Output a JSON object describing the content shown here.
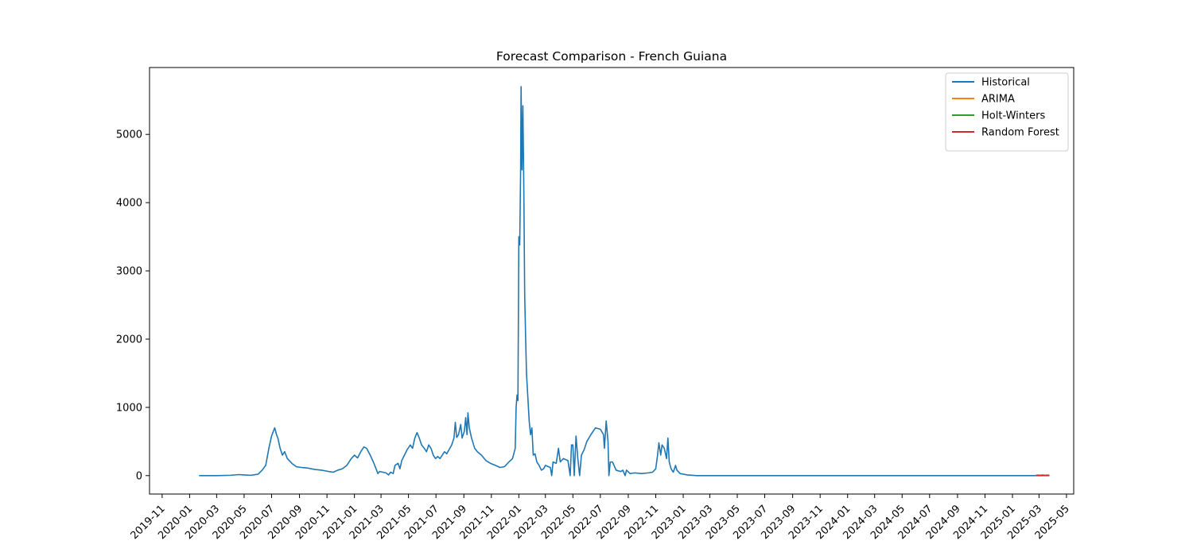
{
  "chart_data": {
    "type": "line",
    "title": "Forecast Comparison - French Guiana",
    "xlabel": "",
    "ylabel": "",
    "grid": false,
    "legend_position": "top-right",
    "xlim": [
      "2019-10-04",
      "2025-05-17"
    ],
    "ylim": [
      -270,
      5980
    ],
    "x_ticks": [
      "2019-11",
      "2020-01",
      "2020-03",
      "2020-05",
      "2020-07",
      "2020-09",
      "2020-11",
      "2021-01",
      "2021-03",
      "2021-05",
      "2021-07",
      "2021-09",
      "2021-11",
      "2022-01",
      "2022-03",
      "2022-05",
      "2022-07",
      "2022-09",
      "2022-11",
      "2023-01",
      "2023-03",
      "2023-05",
      "2023-07",
      "2023-09",
      "2023-11",
      "2024-01",
      "2024-03",
      "2024-05",
      "2024-07",
      "2024-09",
      "2024-11",
      "2025-01",
      "2025-03",
      "2025-05"
    ],
    "y_ticks": [
      0,
      1000,
      2000,
      3000,
      4000,
      5000
    ],
    "series": [
      {
        "name": "Historical",
        "color": "#1f77b4",
        "points": [
          [
            "2020-01-22",
            0
          ],
          [
            "2020-03-01",
            0
          ],
          [
            "2020-04-01",
            5
          ],
          [
            "2020-04-20",
            15
          ],
          [
            "2020-05-01",
            10
          ],
          [
            "2020-05-15",
            5
          ],
          [
            "2020-06-01",
            20
          ],
          [
            "2020-06-10",
            80
          ],
          [
            "2020-06-18",
            150
          ],
          [
            "2020-06-25",
            400
          ],
          [
            "2020-07-01",
            580
          ],
          [
            "2020-07-05",
            650
          ],
          [
            "2020-07-08",
            700
          ],
          [
            "2020-07-12",
            600
          ],
          [
            "2020-07-15",
            550
          ],
          [
            "2020-07-20",
            400
          ],
          [
            "2020-07-25",
            300
          ],
          [
            "2020-07-30",
            350
          ],
          [
            "2020-08-05",
            250
          ],
          [
            "2020-08-15",
            180
          ],
          [
            "2020-08-25",
            130
          ],
          [
            "2020-09-05",
            120
          ],
          [
            "2020-09-20",
            110
          ],
          [
            "2020-10-05",
            90
          ],
          [
            "2020-10-20",
            80
          ],
          [
            "2020-11-05",
            60
          ],
          [
            "2020-11-15",
            50
          ],
          [
            "2020-11-25",
            80
          ],
          [
            "2020-12-05",
            100
          ],
          [
            "2020-12-15",
            150
          ],
          [
            "2020-12-25",
            250
          ],
          [
            "2021-01-01",
            300
          ],
          [
            "2021-01-08",
            260
          ],
          [
            "2021-01-15",
            350
          ],
          [
            "2021-01-22",
            420
          ],
          [
            "2021-01-28",
            400
          ],
          [
            "2021-02-05",
            300
          ],
          [
            "2021-02-12",
            200
          ],
          [
            "2021-02-18",
            100
          ],
          [
            "2021-02-22",
            30
          ],
          [
            "2021-02-26",
            60
          ],
          [
            "2021-03-05",
            50
          ],
          [
            "2021-03-12",
            40
          ],
          [
            "2021-03-18",
            10
          ],
          [
            "2021-03-22",
            50
          ],
          [
            "2021-03-28",
            30
          ],
          [
            "2021-04-01",
            150
          ],
          [
            "2021-04-08",
            180
          ],
          [
            "2021-04-12",
            100
          ],
          [
            "2021-04-16",
            220
          ],
          [
            "2021-04-22",
            300
          ],
          [
            "2021-04-28",
            380
          ],
          [
            "2021-05-05",
            450
          ],
          [
            "2021-05-10",
            400
          ],
          [
            "2021-05-15",
            550
          ],
          [
            "2021-05-20",
            630
          ],
          [
            "2021-05-25",
            550
          ],
          [
            "2021-05-30",
            450
          ],
          [
            "2021-06-05",
            400
          ],
          [
            "2021-06-10",
            350
          ],
          [
            "2021-06-15",
            450
          ],
          [
            "2021-06-20",
            400
          ],
          [
            "2021-06-25",
            300
          ],
          [
            "2021-06-30",
            250
          ],
          [
            "2021-07-05",
            280
          ],
          [
            "2021-07-10",
            250
          ],
          [
            "2021-07-15",
            300
          ],
          [
            "2021-07-20",
            350
          ],
          [
            "2021-07-25",
            320
          ],
          [
            "2021-07-30",
            380
          ],
          [
            "2021-08-05",
            450
          ],
          [
            "2021-08-10",
            550
          ],
          [
            "2021-08-13",
            780
          ],
          [
            "2021-08-16",
            560
          ],
          [
            "2021-08-20",
            600
          ],
          [
            "2021-08-25",
            750
          ],
          [
            "2021-08-28",
            550
          ],
          [
            "2021-09-02",
            650
          ],
          [
            "2021-09-05",
            850
          ],
          [
            "2021-09-08",
            600
          ],
          [
            "2021-09-10",
            920
          ],
          [
            "2021-09-13",
            700
          ],
          [
            "2021-09-18",
            550
          ],
          [
            "2021-09-25",
            400
          ],
          [
            "2021-10-01",
            350
          ],
          [
            "2021-10-10",
            300
          ],
          [
            "2021-10-20",
            220
          ],
          [
            "2021-10-30",
            180
          ],
          [
            "2021-11-10",
            150
          ],
          [
            "2021-11-20",
            120
          ],
          [
            "2021-11-30",
            130
          ],
          [
            "2021-12-10",
            200
          ],
          [
            "2021-12-18",
            250
          ],
          [
            "2021-12-24",
            400
          ],
          [
            "2021-12-26",
            1000
          ],
          [
            "2021-12-28",
            1180
          ],
          [
            "2021-12-30",
            1100
          ],
          [
            "2022-01-01",
            3500
          ],
          [
            "2022-01-03",
            3380
          ],
          [
            "2022-01-05",
            4500
          ],
          [
            "2022-01-06",
            5700
          ],
          [
            "2022-01-08",
            4480
          ],
          [
            "2022-01-10",
            5420
          ],
          [
            "2022-01-12",
            4250
          ],
          [
            "2022-01-14",
            2650
          ],
          [
            "2022-01-16",
            2050
          ],
          [
            "2022-01-18",
            1500
          ],
          [
            "2022-01-21",
            1150
          ],
          [
            "2022-01-24",
            800
          ],
          [
            "2022-01-27",
            600
          ],
          [
            "2022-01-30",
            700
          ],
          [
            "2022-02-02",
            300
          ],
          [
            "2022-02-06",
            320
          ],
          [
            "2022-02-10",
            200
          ],
          [
            "2022-02-15",
            150
          ],
          [
            "2022-02-20",
            80
          ],
          [
            "2022-02-25",
            100
          ],
          [
            "2022-03-01",
            150
          ],
          [
            "2022-03-08",
            130
          ],
          [
            "2022-03-12",
            120
          ],
          [
            "2022-03-15",
            0
          ],
          [
            "2022-03-18",
            200
          ],
          [
            "2022-03-25",
            180
          ],
          [
            "2022-03-30",
            400
          ],
          [
            "2022-04-03",
            200
          ],
          [
            "2022-04-10",
            250
          ],
          [
            "2022-04-20",
            220
          ],
          [
            "2022-04-25",
            0
          ],
          [
            "2022-04-28",
            450
          ],
          [
            "2022-05-01",
            450
          ],
          [
            "2022-05-04",
            0
          ],
          [
            "2022-05-08",
            580
          ],
          [
            "2022-05-12",
            250
          ],
          [
            "2022-05-16",
            0
          ],
          [
            "2022-05-20",
            300
          ],
          [
            "2022-05-26",
            380
          ],
          [
            "2022-06-01",
            500
          ],
          [
            "2022-06-10",
            600
          ],
          [
            "2022-06-20",
            700
          ],
          [
            "2022-07-01",
            680
          ],
          [
            "2022-07-08",
            600
          ],
          [
            "2022-07-10",
            400
          ],
          [
            "2022-07-14",
            800
          ],
          [
            "2022-07-18",
            500
          ],
          [
            "2022-07-20",
            0
          ],
          [
            "2022-07-23",
            200
          ],
          [
            "2022-07-28",
            200
          ],
          [
            "2022-08-05",
            80
          ],
          [
            "2022-08-15",
            60
          ],
          [
            "2022-08-20",
            80
          ],
          [
            "2022-08-25",
            0
          ],
          [
            "2022-08-28",
            80
          ],
          [
            "2022-09-05",
            30
          ],
          [
            "2022-09-15",
            40
          ],
          [
            "2022-10-01",
            30
          ],
          [
            "2022-10-15",
            40
          ],
          [
            "2022-10-25",
            50
          ],
          [
            "2022-11-01",
            100
          ],
          [
            "2022-11-05",
            300
          ],
          [
            "2022-11-08",
            480
          ],
          [
            "2022-11-12",
            300
          ],
          [
            "2022-11-15",
            450
          ],
          [
            "2022-11-20",
            400
          ],
          [
            "2022-11-25",
            250
          ],
          [
            "2022-11-28",
            550
          ],
          [
            "2022-12-01",
            200
          ],
          [
            "2022-12-05",
            100
          ],
          [
            "2022-12-10",
            50
          ],
          [
            "2022-12-15",
            150
          ],
          [
            "2022-12-18",
            80
          ],
          [
            "2022-12-25",
            30
          ],
          [
            "2023-01-10",
            10
          ],
          [
            "2023-02-01",
            0
          ],
          [
            "2025-02-22",
            0
          ]
        ]
      },
      {
        "name": "ARIMA",
        "color": "#ff7f0e",
        "points": [
          [
            "2025-02-22",
            0
          ],
          [
            "2025-03-24",
            0
          ]
        ]
      },
      {
        "name": "Holt-Winters",
        "color": "#2ca02c",
        "points": [
          [
            "2025-02-22",
            0
          ],
          [
            "2025-03-24",
            0
          ]
        ]
      },
      {
        "name": "Random Forest",
        "color": "#d62728",
        "points": [
          [
            "2025-02-22",
            5
          ],
          [
            "2025-02-27",
            8
          ],
          [
            "2025-03-04",
            4
          ],
          [
            "2025-03-09",
            9
          ],
          [
            "2025-03-14",
            5
          ],
          [
            "2025-03-19",
            8
          ],
          [
            "2025-03-24",
            5
          ]
        ]
      }
    ]
  }
}
